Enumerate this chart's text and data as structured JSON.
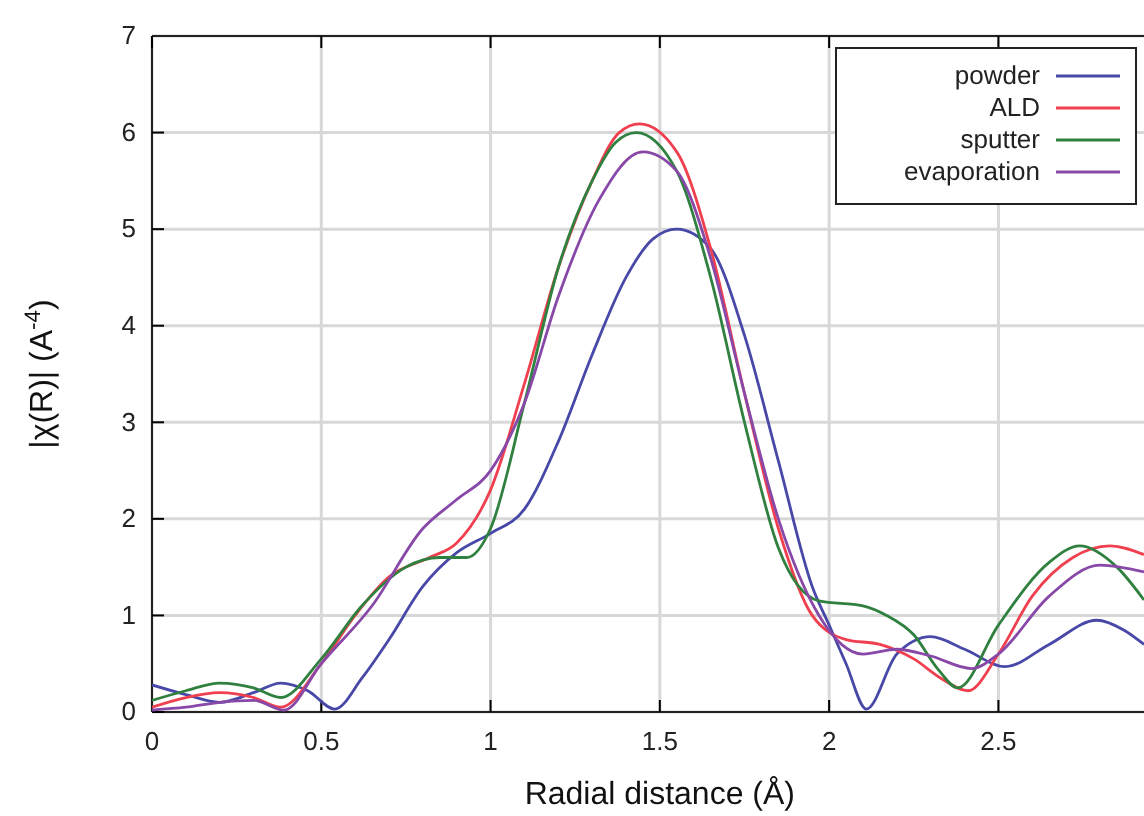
{
  "chart_data": {
    "type": "line",
    "xlabel": "Radial distance    (Å)",
    "ylabel": "|χ(R)|    (A$^{-4}$)",
    "xlim": [
      0,
      2.93
    ],
    "xticks": [
      0,
      0.5,
      1,
      1.5,
      2,
      2.5
    ],
    "ylim": [
      0,
      7
    ],
    "yticks": [
      0,
      1,
      2,
      3,
      4,
      5,
      6,
      7
    ],
    "grid": true,
    "legend": "top right",
    "line_style": "solid",
    "marker": "none",
    "series": [
      {
        "name": "powder",
        "color": "#4848a8",
        "x": [
          0,
          0.1,
          0.2,
          0.3,
          0.38,
          0.46,
          0.54,
          0.62,
          0.7,
          0.8,
          0.9,
          1.0,
          1.1,
          1.2,
          1.3,
          1.4,
          1.48,
          1.55,
          1.65,
          1.75,
          1.85,
          1.95,
          2.0,
          2.05,
          2.11,
          2.2,
          2.3,
          2.4,
          2.52,
          2.65,
          2.79,
          2.87,
          2.93
        ],
        "values": [
          0.28,
          0.18,
          0.1,
          0.2,
          0.3,
          0.22,
          0.03,
          0.35,
          0.75,
          1.3,
          1.65,
          1.85,
          2.1,
          2.8,
          3.7,
          4.5,
          4.9,
          5.0,
          4.8,
          3.9,
          2.6,
          1.3,
          0.9,
          0.5,
          0.03,
          0.6,
          0.78,
          0.65,
          0.47,
          0.7,
          0.95,
          0.85,
          0.7
        ]
      },
      {
        "name": "ALD",
        "color": "#f04050",
        "x": [
          0,
          0.1,
          0.2,
          0.3,
          0.38,
          0.5,
          0.6,
          0.7,
          0.82,
          0.9,
          1.0,
          1.1,
          1.2,
          1.3,
          1.38,
          1.44,
          1.55,
          1.65,
          1.75,
          1.85,
          1.95,
          2.05,
          2.15,
          2.25,
          2.33,
          2.41,
          2.5,
          2.6,
          2.72,
          2.83,
          2.93
        ],
        "values": [
          0.05,
          0.15,
          0.2,
          0.15,
          0.05,
          0.5,
          1.0,
          1.4,
          1.6,
          1.75,
          2.3,
          3.4,
          4.6,
          5.5,
          6.0,
          6.09,
          5.8,
          4.8,
          3.3,
          1.9,
          1.0,
          0.75,
          0.7,
          0.55,
          0.35,
          0.22,
          0.6,
          1.2,
          1.6,
          1.72,
          1.63
        ]
      },
      {
        "name": "sputter",
        "color": "#308040",
        "x": [
          0,
          0.1,
          0.2,
          0.3,
          0.38,
          0.5,
          0.62,
          0.75,
          0.85,
          0.93,
          1.0,
          1.1,
          1.2,
          1.3,
          1.37,
          1.43,
          1.55,
          1.65,
          1.75,
          1.85,
          1.97,
          2.1,
          2.17,
          2.25,
          2.32,
          2.38,
          2.5,
          2.65,
          2.74,
          2.85,
          2.93
        ],
        "values": [
          0.12,
          0.22,
          0.3,
          0.25,
          0.15,
          0.55,
          1.1,
          1.5,
          1.6,
          1.6,
          1.9,
          3.2,
          4.6,
          5.5,
          5.9,
          6.0,
          5.6,
          4.5,
          3.0,
          1.7,
          1.15,
          1.1,
          1.0,
          0.8,
          0.45,
          0.25,
          0.9,
          1.55,
          1.72,
          1.5,
          1.16
        ]
      },
      {
        "name": "evaporation",
        "color": "#8848a8",
        "x": [
          0,
          0.1,
          0.2,
          0.3,
          0.39,
          0.5,
          0.65,
          0.8,
          0.9,
          1.0,
          1.1,
          1.2,
          1.32,
          1.45,
          1.55,
          1.65,
          1.75,
          1.85,
          1.97,
          2.1,
          2.2,
          2.3,
          2.42,
          2.5,
          2.65,
          2.8,
          2.93
        ],
        "values": [
          0.02,
          0.05,
          0.1,
          0.12,
          0.02,
          0.5,
          1.1,
          1.9,
          2.2,
          2.5,
          3.2,
          4.3,
          5.3,
          5.8,
          5.6,
          4.7,
          3.3,
          2.0,
          1.0,
          0.6,
          0.65,
          0.58,
          0.45,
          0.6,
          1.2,
          1.52,
          1.45
        ]
      }
    ]
  }
}
